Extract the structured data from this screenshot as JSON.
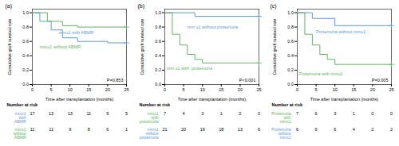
{
  "chart_data": [
    {
      "type": "step",
      "title": "(a)",
      "xlabel": "Time after transplantation (months)",
      "ylabel": "Cumulative graft survival rate",
      "xlim": [
        0,
        25
      ],
      "ylim": [
        0.0,
        1.05
      ],
      "xticks": [
        0,
        5,
        10,
        15,
        20,
        25
      ],
      "yticks": [
        {
          "value": 0.0,
          "label": "0.0"
        },
        0.2,
        0.4,
        0.6,
        0.8,
        {
          "value": 1.0,
          "label": "1.0"
        }
      ],
      "grid": false,
      "series": [
        {
          "type": "step",
          "color": "#5b9bd5",
          "x": [
            0,
            2,
            2,
            5,
            5,
            8,
            8,
            12,
            12,
            20,
            20,
            25
          ],
          "values": [
            1.0,
            1.0,
            0.88,
            0.88,
            0.76,
            0.76,
            0.65,
            0.65,
            0.6,
            0.6,
            0.58,
            0.58
          ]
        },
        {
          "type": "step",
          "color": "#5cb85c",
          "x": [
            0,
            4,
            4,
            8,
            8,
            12,
            12,
            25
          ],
          "values": [
            1.0,
            1.0,
            0.88,
            0.88,
            0.82,
            0.82,
            0.8,
            0.8
          ]
        },
        {
          "type": "scatter",
          "marker": "plus",
          "color": "#5b9bd5",
          "x": [
            25
          ],
          "values": [
            0.58
          ]
        },
        {
          "type": "scatter",
          "marker": "plus",
          "color": "#5cb85c",
          "x": [
            25
          ],
          "values": [
            0.8
          ]
        }
      ],
      "annotations": [
        {
          "text": "mm≥1 with ABMR",
          "x": 7,
          "y": 0.72,
          "color": "#5b9bd5"
        },
        {
          "text": "mm≥1 without ABMR",
          "x": 2,
          "y": 0.52,
          "color": "#5cb85c"
        },
        {
          "text": "P=0.853"
        }
      ],
      "risk_table": {
        "title": "Number at risk",
        "x": [
          0,
          5,
          10,
          15,
          20,
          25
        ],
        "rows": [
          {
            "label": "mm≥1\nwith\nABMR",
            "color": "#5b9bd5",
            "values": [
              17,
              13,
              13,
              11,
              9,
              5
            ]
          },
          {
            "label": "mm≥1\nwithout\nABMR",
            "color": "#5cb85c",
            "values": [
              11,
              11,
              9,
              8,
              6,
              1
            ]
          }
        ]
      }
    },
    {
      "type": "step",
      "title": "(b)",
      "xlabel": "Time after transplantation (months)",
      "ylabel": "Cumulative graft survival rate",
      "xlim": [
        0,
        25
      ],
      "ylim": [
        0.0,
        1.05
      ],
      "xticks": [
        0,
        5,
        10,
        15,
        20,
        25
      ],
      "yticks": [
        {
          "value": 0.0,
          "label": "0.0"
        },
        0.2,
        0.4,
        0.6,
        0.8,
        {
          "value": 1.0,
          "label": "1.0"
        }
      ],
      "grid": false,
      "series": [
        {
          "type": "step",
          "color": "#5b9bd5",
          "x": [
            0,
            8,
            8,
            25
          ],
          "values": [
            1.0,
            1.0,
            0.95,
            0.95
          ]
        },
        {
          "type": "step",
          "color": "#5cb85c",
          "x": [
            0,
            2,
            2,
            4,
            4,
            6,
            6,
            8,
            8,
            10,
            10,
            25
          ],
          "values": [
            1.0,
            1.0,
            0.7,
            0.7,
            0.55,
            0.55,
            0.42,
            0.42,
            0.35,
            0.35,
            0.3,
            0.3
          ]
        },
        {
          "type": "scatter",
          "marker": "plus",
          "color": "#5b9bd5",
          "x": [
            25
          ],
          "values": [
            0.95
          ]
        },
        {
          "type": "scatter",
          "marker": "plus",
          "color": "#5cb85c",
          "x": [
            25
          ],
          "values": [
            0.3
          ]
        }
      ],
      "annotations": [
        {
          "text": "mm ≥1 without proteinuria",
          "x": 6,
          "y": 0.8,
          "color": "#5b9bd5"
        },
        {
          "text": "mm ≥1 with  proteinuria",
          "x": 0.5,
          "y": 0.22,
          "color": "#5cb85c"
        },
        {
          "text": "P<0.001"
        }
      ],
      "risk_table": {
        "title": "Number at risk",
        "x": [
          0,
          5,
          10,
          15,
          20,
          25
        ],
        "rows": [
          {
            "label": "mm≥1\nwith\nproteinuria",
            "color": "#5cb85c",
            "values": [
              7,
              4,
              3,
              1,
              0,
              0
            ]
          },
          {
            "label": "mm≥1\nwithout\nproteinuria",
            "color": "#5b9bd5",
            "values": [
              21,
              20,
              19,
              18,
              13,
              6
            ]
          }
        ]
      }
    },
    {
      "type": "step",
      "title": "(c)",
      "xlabel": "Time after transplantation (months)",
      "ylabel": "Cumulative graft survival rate",
      "xlim": [
        0,
        25
      ],
      "ylim": [
        0.0,
        1.05
      ],
      "xticks": [
        0,
        5,
        10,
        15,
        20,
        25
      ],
      "yticks": [
        {
          "value": 0.0,
          "label": "0.0"
        },
        0.2,
        0.4,
        0.6,
        0.8,
        {
          "value": 1.0,
          "label": "1.0"
        }
      ],
      "grid": false,
      "series": [
        {
          "type": "step",
          "color": "#5b9bd5",
          "x": [
            0,
            4,
            4,
            10,
            10,
            25
          ],
          "values": [
            1.0,
            1.0,
            0.92,
            0.92,
            0.82,
            0.82
          ]
        },
        {
          "type": "step",
          "color": "#5cb85c",
          "x": [
            0,
            2,
            2,
            4,
            4,
            6,
            6,
            8,
            8,
            10,
            10,
            25
          ],
          "values": [
            1.0,
            1.0,
            0.7,
            0.7,
            0.55,
            0.55,
            0.42,
            0.42,
            0.35,
            0.35,
            0.28,
            0.28
          ]
        },
        {
          "type": "scatter",
          "marker": "plus",
          "color": "#5b9bd5",
          "x": [
            25
          ],
          "values": [
            0.82
          ]
        },
        {
          "type": "scatter",
          "marker": "plus",
          "color": "#5cb85c",
          "x": [
            25
          ],
          "values": [
            0.28
          ]
        }
      ],
      "annotations": [
        {
          "text": "Proteinuria without mm≥1",
          "x": 5,
          "y": 0.73,
          "color": "#5b9bd5"
        },
        {
          "text": "Proteinuria with mm≥1",
          "x": 0.5,
          "y": 0.15,
          "color": "#5cb85c"
        },
        {
          "text": "P=0.005"
        }
      ],
      "risk_table": {
        "title": "Number at risk",
        "x": [
          0,
          5,
          10,
          15,
          20,
          25
        ],
        "rows": [
          {
            "label": "Proteinuria\nwith\nmm≥1",
            "color": "#5cb85c",
            "values": [
              7,
              6,
              3,
              1,
              0,
              0
            ]
          },
          {
            "label": "Proteinuria\nwithout\nmm≥1",
            "color": "#5b9bd5",
            "values": [
              6,
              6,
              6,
              4,
              2,
              2
            ]
          }
        ]
      }
    }
  ]
}
